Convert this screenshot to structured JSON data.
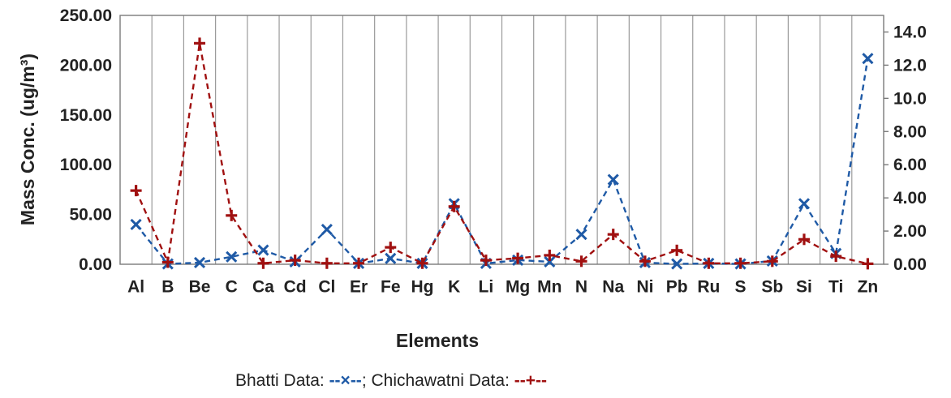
{
  "chart_data": {
    "type": "line",
    "xlabel": "Elements",
    "ylabel": "Mass Conc. (ug/m³)",
    "categories": [
      "Al",
      "B",
      "Be",
      "C",
      "Ca",
      "Cd",
      "Cl",
      "Er",
      "Fe",
      "Hg",
      "K",
      "Li",
      "Mg",
      "Mn",
      "N",
      "Na",
      "Ni",
      "Pb",
      "Ru",
      "S",
      "Sb",
      "Si",
      "Ti",
      "Zn"
    ],
    "y_left": {
      "ylim": [
        0,
        250
      ],
      "ticks": [
        "0.00",
        "50.00",
        "100.00",
        "150.00",
        "200.00",
        "250.00"
      ]
    },
    "y_right": {
      "ylim": [
        0,
        15
      ],
      "ticks": [
        "0.00",
        "2.00",
        "4.00",
        "6.00",
        "8.00",
        "10.0",
        "12.0",
        "14.0"
      ]
    },
    "grid": "vertical gridlines at each category",
    "series": [
      {
        "name": "Bhatti Data",
        "axis": "right",
        "marker": "x",
        "line_style": "dashed",
        "color": "#1f5aa6",
        "values": [
          2.4,
          0.02,
          0.1,
          0.45,
          0.85,
          0.15,
          2.1,
          0.05,
          0.35,
          0.05,
          3.65,
          0.05,
          0.25,
          0.15,
          1.8,
          5.1,
          0.1,
          0.02,
          0.05,
          0.02,
          0.2,
          3.65,
          0.65,
          12.4
        ]
      },
      {
        "name": "Chichawatni Data",
        "axis": "left",
        "marker": "+",
        "line_style": "dashed",
        "color": "#a01010",
        "values": [
          74,
          2,
          222,
          49,
          1,
          4,
          1,
          1,
          17,
          1,
          58,
          4,
          6,
          9,
          3,
          30,
          3,
          14,
          1,
          1,
          3,
          25,
          8,
          0.5
        ]
      }
    ],
    "legend": {
      "position": "bottom-center",
      "prefix_1": "Bhatti Data: ",
      "symbol_1": "--×--",
      "separator": "; ",
      "prefix_2": "Chichawatni Data: ",
      "symbol_2": "--+--"
    }
  }
}
